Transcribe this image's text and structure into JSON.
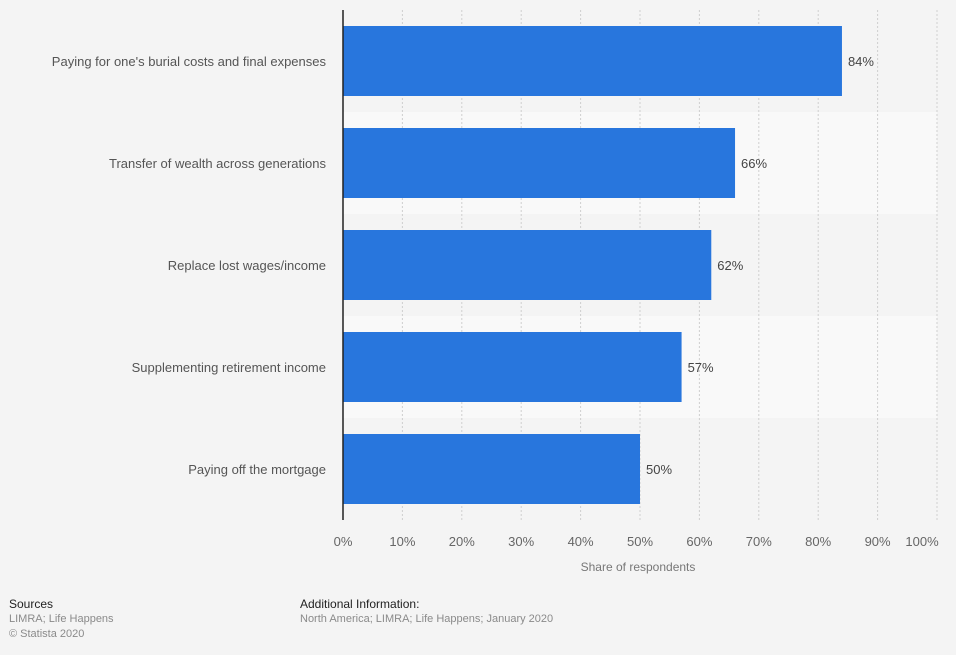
{
  "chart_data": {
    "type": "bar",
    "orientation": "horizontal",
    "title": "",
    "categories": [
      "Paying for one's burial costs and final expenses",
      "Transfer of wealth across generations",
      "Replace lost wages/income",
      "Supplementing retirement income",
      "Paying off the mortgage"
    ],
    "values": [
      84,
      66,
      62,
      57,
      50
    ],
    "value_labels": [
      "84%",
      "66%",
      "62%",
      "57%",
      "50%"
    ],
    "xlabel": "Share of respondents",
    "ylabel": "",
    "xlim": [
      0,
      100
    ],
    "x_ticks": [
      0,
      10,
      20,
      30,
      40,
      50,
      60,
      70,
      80,
      90,
      100
    ],
    "x_tick_labels": [
      "0%",
      "10%",
      "20%",
      "30%",
      "40%",
      "50%",
      "60%",
      "70%",
      "80%",
      "90%",
      "100%"
    ],
    "grid": true,
    "bar_color": "#2876dd"
  },
  "footer": {
    "sources_heading": "Sources",
    "sources_text": "LIMRA; Life Happens",
    "copyright": "© Statista 2020",
    "additional_heading": "Additional Information:",
    "additional_text": "North America; LIMRA; Life Happens; January 2020"
  }
}
